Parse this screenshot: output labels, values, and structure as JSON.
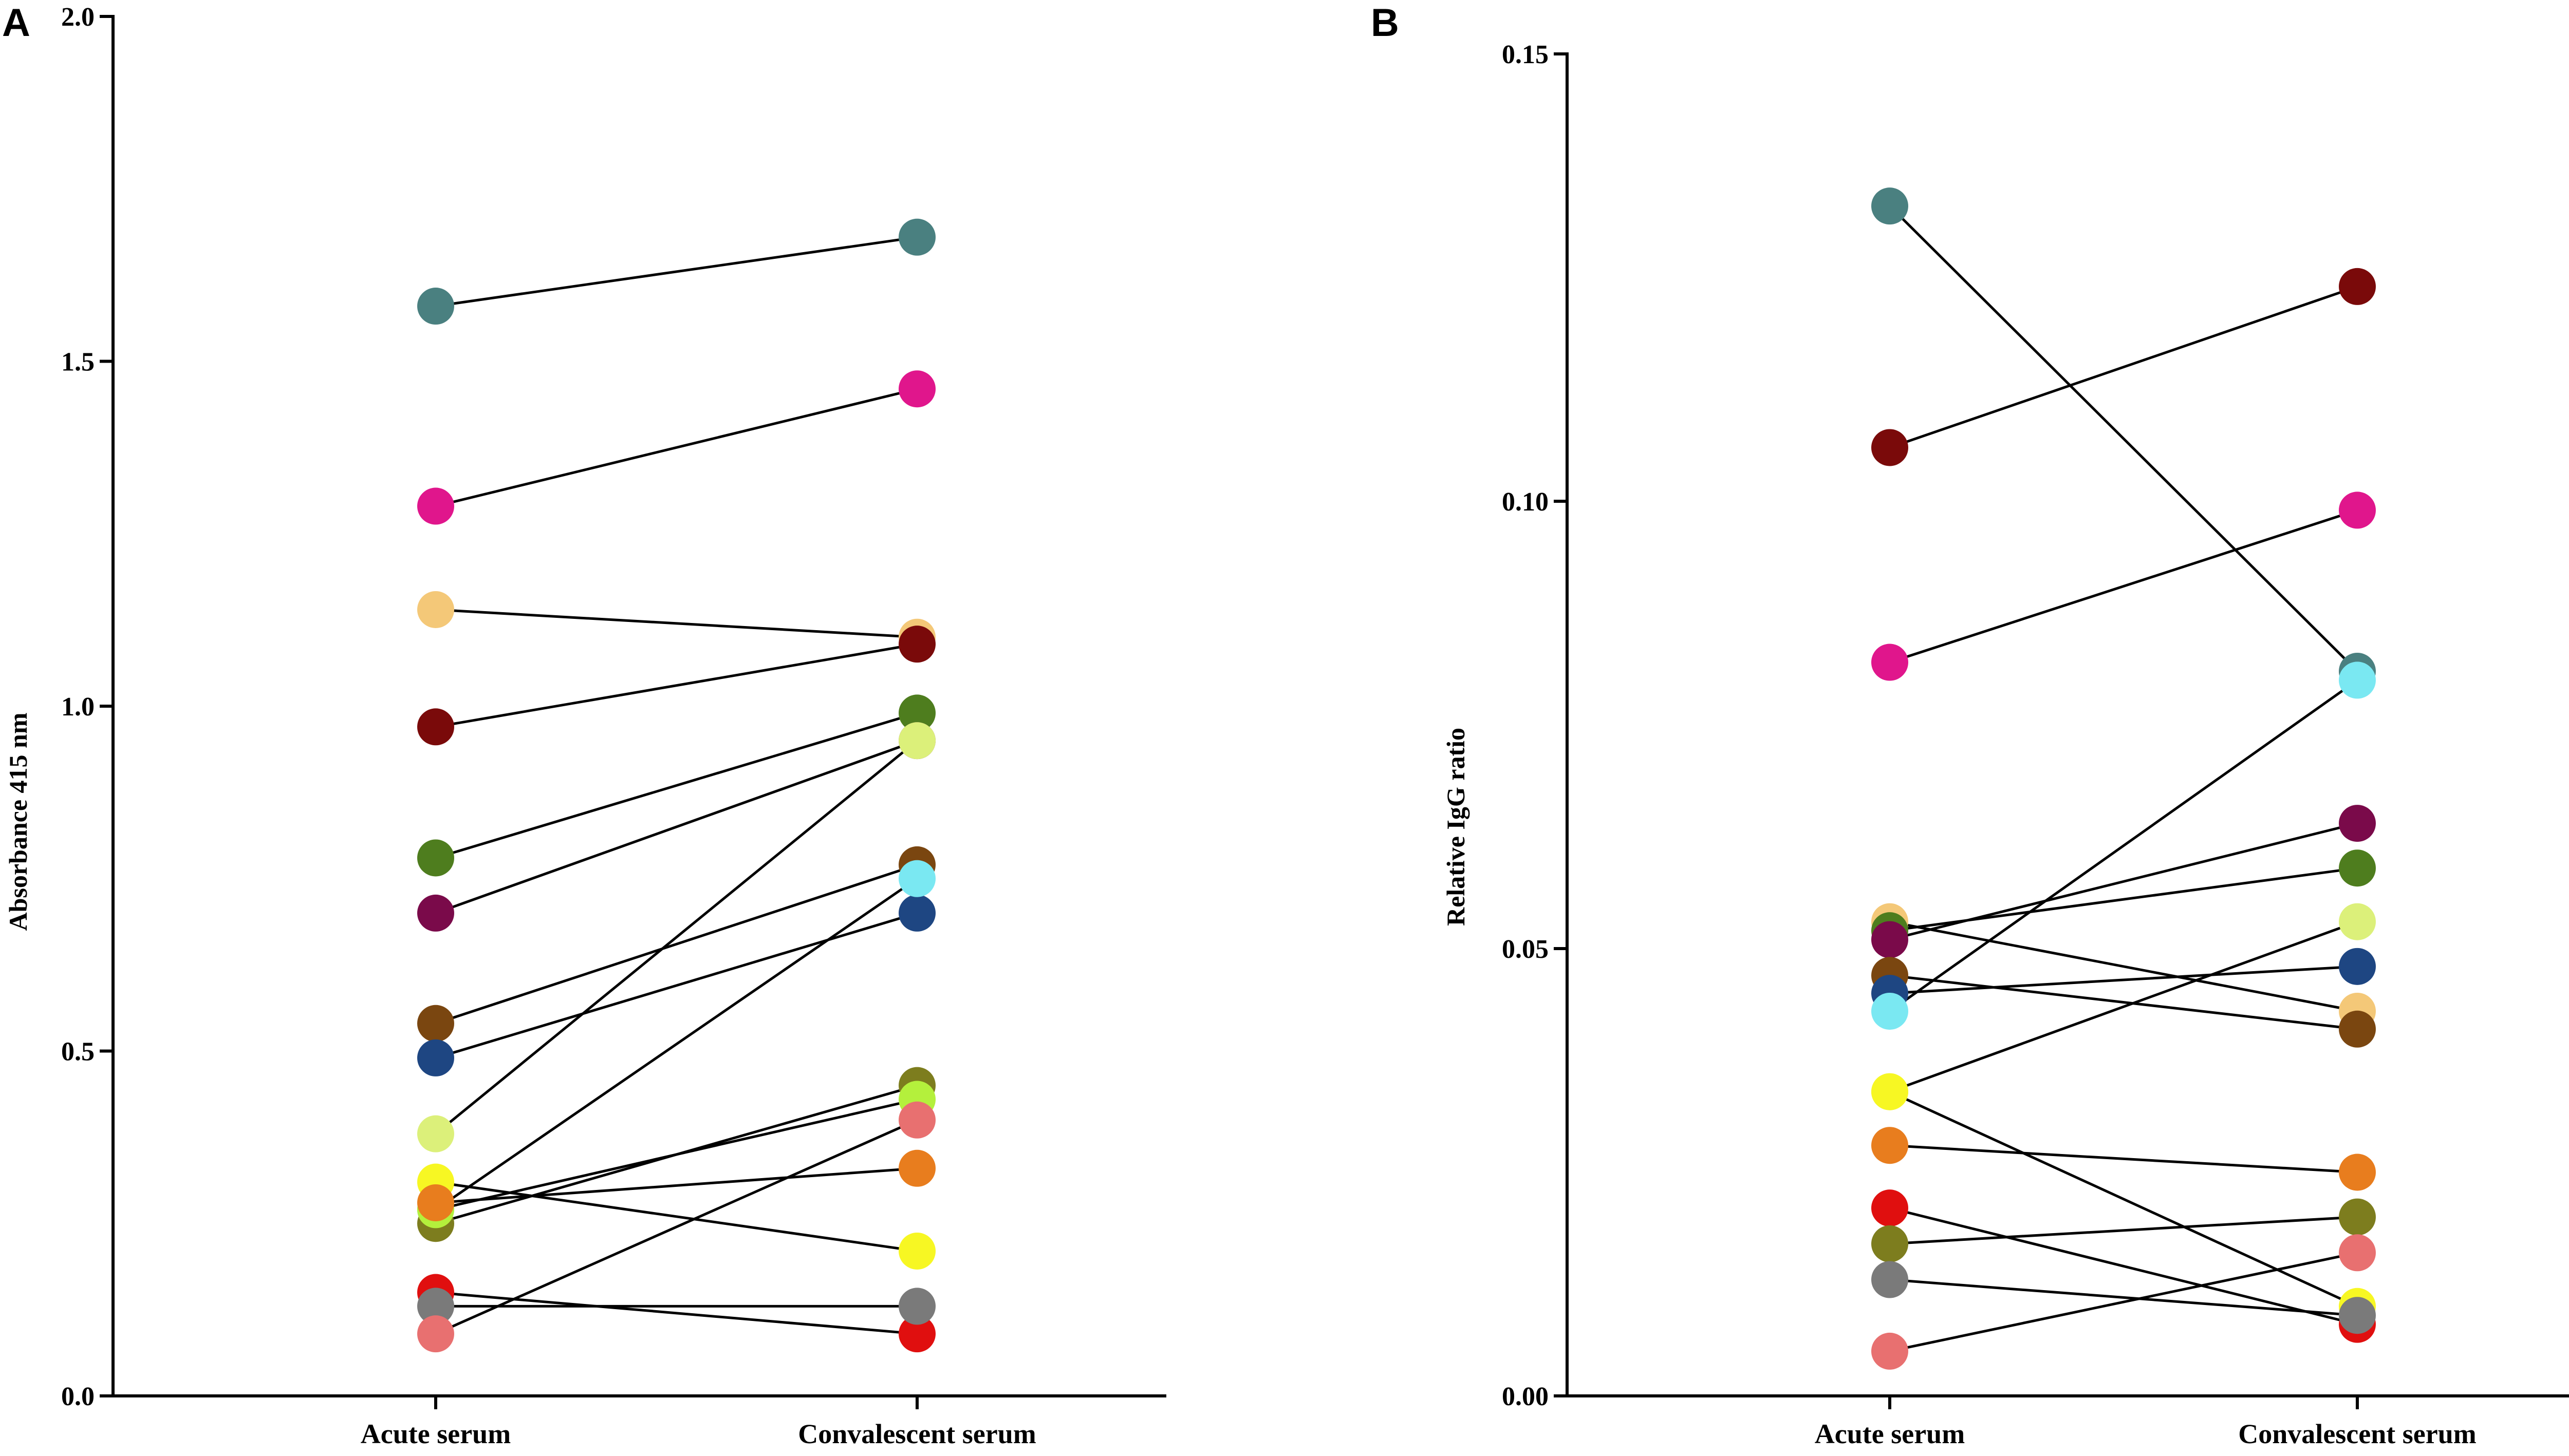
{
  "chart_data": [
    {
      "type": "scatter",
      "panel_label": "A",
      "title": "",
      "ylabel": "Absorbance  415 nm",
      "xlabel": "",
      "categories": [
        "Acute serum",
        "Convalescent serum"
      ],
      "ylim": [
        0,
        2.0
      ],
      "yticks": [
        0.0,
        0.5,
        1.0,
        1.5,
        2.0
      ],
      "ytick_labels": [
        "0.0",
        "0.5",
        "1.0",
        "1.5",
        "2.0"
      ],
      "series": [
        {
          "name": "teal",
          "color": "#4a8080",
          "values": [
            1.58,
            1.68
          ]
        },
        {
          "name": "magenta",
          "color": "#e0168c",
          "values": [
            1.29,
            1.46
          ]
        },
        {
          "name": "tan",
          "color": "#f4c878",
          "values": [
            1.14,
            1.1
          ]
        },
        {
          "name": "dark red",
          "color": "#7a0a0a",
          "values": [
            0.97,
            1.09
          ]
        },
        {
          "name": "green",
          "color": "#4e7d1e",
          "values": [
            0.78,
            0.99
          ]
        },
        {
          "name": "plum",
          "color": "#7a0a4a",
          "values": [
            0.7,
            0.95
          ]
        },
        {
          "name": "brown",
          "color": "#7a4610",
          "values": [
            0.54,
            0.77
          ]
        },
        {
          "name": "navy",
          "color": "#1e4682",
          "values": [
            0.49,
            0.7
          ]
        },
        {
          "name": "light lime",
          "color": "#dcf07a",
          "values": [
            0.38,
            0.95
          ]
        },
        {
          "name": "yellow",
          "color": "#f7f723",
          "values": [
            0.31,
            0.21
          ]
        },
        {
          "name": "cyan",
          "color": "#7ae8f2",
          "values": [
            0.27,
            0.75
          ]
        },
        {
          "name": "olive",
          "color": "#7d7d1e",
          "values": [
            0.25,
            0.45
          ]
        },
        {
          "name": "lime",
          "color": "#b4f03c",
          "values": [
            0.27,
            0.43
          ]
        },
        {
          "name": "orange",
          "color": "#e87d1e",
          "values": [
            0.28,
            0.33
          ]
        },
        {
          "name": "red",
          "color": "#e00f0f",
          "values": [
            0.15,
            0.09
          ]
        },
        {
          "name": "grey",
          "color": "#7a7a7a",
          "values": [
            0.13,
            0.13
          ]
        },
        {
          "name": "pink",
          "color": "#e87070",
          "values": [
            0.09,
            0.4
          ]
        }
      ]
    },
    {
      "type": "scatter",
      "panel_label": "B",
      "title": "",
      "ylabel": "Relative IgG ratio",
      "xlabel": "",
      "categories": [
        "Acute serum",
        "Convalescent serum"
      ],
      "ylim": [
        0,
        0.15
      ],
      "yticks": [
        0.0,
        0.05,
        0.1,
        0.15
      ],
      "ytick_labels": [
        "0.00",
        "0.05",
        "0.10",
        "0.15"
      ],
      "series": [
        {
          "name": "teal",
          "color": "#4a8080",
          "values": [
            0.133,
            0.081
          ]
        },
        {
          "name": "dark red",
          "color": "#7a0a0a",
          "values": [
            0.106,
            0.124
          ]
        },
        {
          "name": "magenta",
          "color": "#e0168c",
          "values": [
            0.082,
            0.099
          ]
        },
        {
          "name": "tan",
          "color": "#f4c878",
          "values": [
            0.053,
            0.043
          ]
        },
        {
          "name": "green",
          "color": "#4e7d1e",
          "values": [
            0.052,
            0.059
          ]
        },
        {
          "name": "plum",
          "color": "#7a0a4a",
          "values": [
            0.051,
            0.064
          ]
        },
        {
          "name": "brown",
          "color": "#7a4610",
          "values": [
            0.047,
            0.041
          ]
        },
        {
          "name": "navy",
          "color": "#1e4682",
          "values": [
            0.045,
            0.048
          ]
        },
        {
          "name": "cyan",
          "color": "#7ae8f2",
          "values": [
            0.043,
            0.08
          ]
        },
        {
          "name": "light lime",
          "color": "#dcf07a",
          "values": [
            0.034,
            0.053
          ]
        },
        {
          "name": "yellow",
          "color": "#f7f723",
          "values": [
            0.034,
            0.01
          ]
        },
        {
          "name": "orange",
          "color": "#e87d1e",
          "values": [
            0.028,
            0.025
          ]
        },
        {
          "name": "red",
          "color": "#e00f0f",
          "values": [
            0.021,
            0.008
          ]
        },
        {
          "name": "olive",
          "color": "#7d7d1e",
          "values": [
            0.017,
            0.02
          ]
        },
        {
          "name": "grey",
          "color": "#7a7a7a",
          "values": [
            0.013,
            0.009
          ]
        },
        {
          "name": "pink",
          "color": "#e87070",
          "values": [
            0.005,
            0.016
          ]
        }
      ]
    }
  ]
}
